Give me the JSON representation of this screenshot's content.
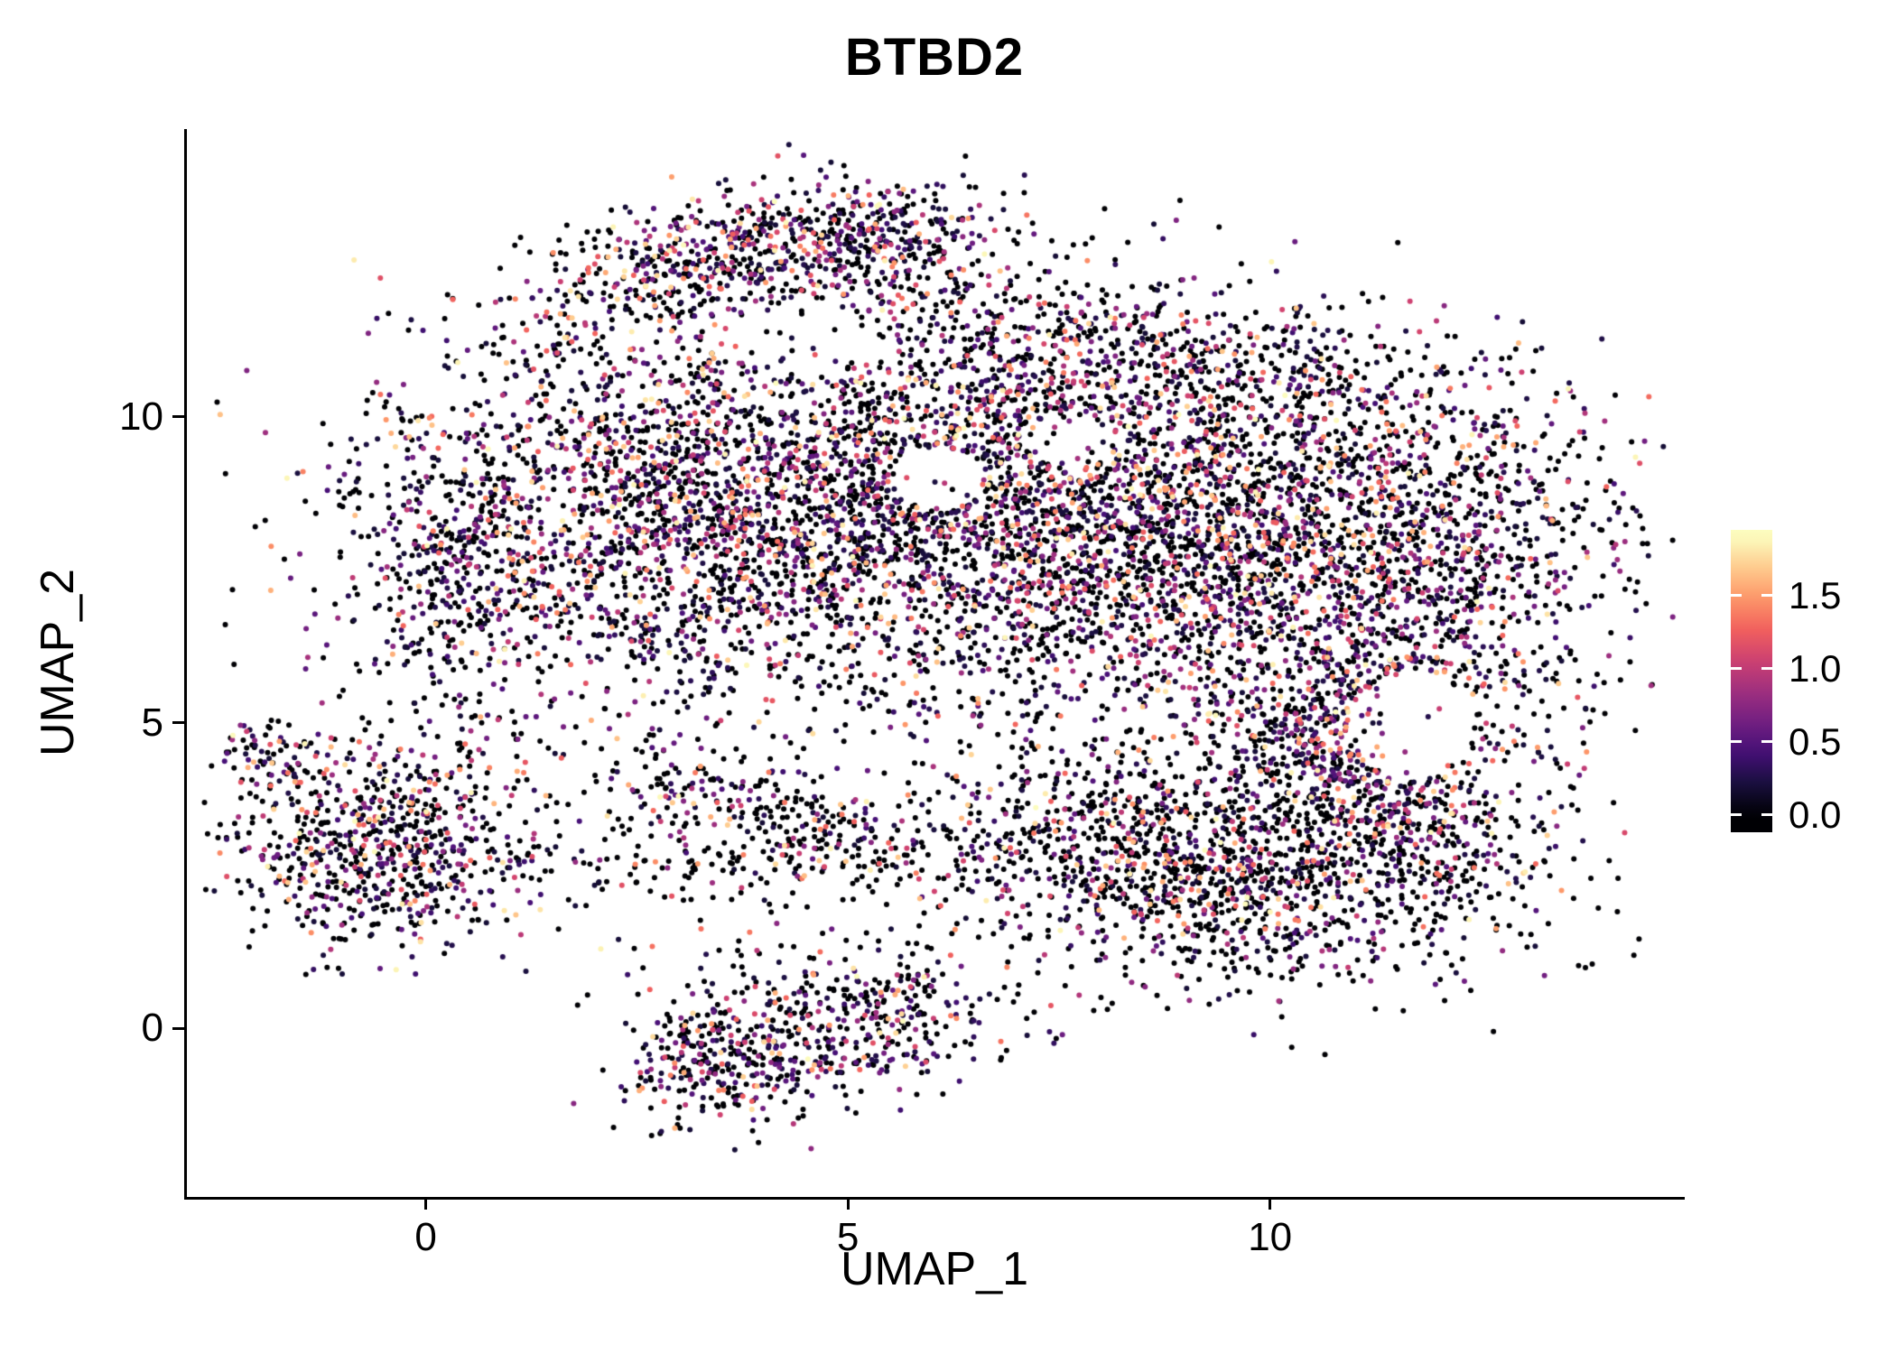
{
  "title": "BTBD2",
  "chart_data": {
    "type": "scatter",
    "title": "BTBD2",
    "xlabel": "UMAP_1",
    "ylabel": "UMAP_2",
    "x_ticks": [
      0,
      5,
      10
    ],
    "y_ticks": [
      0,
      5,
      10
    ],
    "xlim": [
      -2.83,
      14.88
    ],
    "ylim": [
      -2.76,
      14.71
    ],
    "grid": false,
    "point_radius_px": 3,
    "seed": 20240613,
    "value_distribution": {
      "zero_default": 0.5,
      "min_nonzero": 0.18,
      "range": 1.72,
      "exponent": 2.2
    },
    "color_scale": {
      "name": "magma",
      "domain": [
        0,
        1.9
      ],
      "stops": [
        "#000004",
        "#180f3d",
        "#440f76",
        "#721f81",
        "#9e2f7f",
        "#cd4071",
        "#f1605d",
        "#fd9668",
        "#feca8d",
        "#fcfdbf"
      ]
    },
    "legend": {
      "ticks": [
        1.5,
        1.0,
        0.5,
        0.0
      ],
      "tick_labels": [
        "1.5",
        "1.0",
        "0.5",
        "0.0"
      ],
      "vmin": -0.12,
      "vmax": 1.95
    },
    "clusters": [
      {
        "name": "top-arc",
        "n": 520,
        "cx": 3.4,
        "cy": 12.6,
        "sx": 1.25,
        "sy": 0.5,
        "rot": 18,
        "zero": 0.42
      },
      {
        "name": "top-knob",
        "n": 300,
        "cx": 5.4,
        "cy": 12.9,
        "sx": 0.75,
        "sy": 0.45,
        "rot": 0,
        "zero": 0.45
      },
      {
        "name": "upper-mid",
        "n": 380,
        "cx": 6.8,
        "cy": 11.2,
        "sx": 1.5,
        "sy": 0.8,
        "rot": 0,
        "zero": 0.5
      },
      {
        "name": "main-left",
        "n": 2200,
        "cx": 3.0,
        "cy": 8.4,
        "sx": 1.9,
        "sy": 1.7,
        "rot": 0,
        "zero": 0.48
      },
      {
        "name": "left-edge",
        "n": 320,
        "cx": 0.35,
        "cy": 7.4,
        "sx": 0.55,
        "sy": 1.25,
        "rot": 0,
        "zero": 0.45
      },
      {
        "name": "main-center",
        "n": 2200,
        "cx": 6.6,
        "cy": 8.6,
        "sx": 2.0,
        "sy": 1.6,
        "rot": 0,
        "zero": 0.5
      },
      {
        "name": "main-right",
        "n": 2000,
        "cx": 9.6,
        "cy": 8.0,
        "sx": 1.7,
        "sy": 1.5,
        "rot": 0,
        "zero": 0.5
      },
      {
        "name": "top-right-edge",
        "n": 260,
        "cx": 9.9,
        "cy": 10.7,
        "sx": 1.5,
        "sy": 0.55,
        "rot": -8,
        "zero": 0.55
      },
      {
        "name": "far-right",
        "n": 750,
        "cx": 12.3,
        "cy": 7.6,
        "sx": 1.05,
        "sy": 1.7,
        "rot": 0,
        "zero": 0.5
      },
      {
        "name": "right-notch",
        "n": 300,
        "cx": 11.0,
        "cy": 5.3,
        "sx": 0.8,
        "sy": 0.8,
        "rot": 0,
        "zero": 0.45
      },
      {
        "name": "right-band",
        "n": 360,
        "cx": 10.9,
        "cy": 4.4,
        "sx": 0.95,
        "sy": 0.6,
        "rot": -25,
        "zero": 0.38
      },
      {
        "name": "arm",
        "n": 1600,
        "cx": 9.2,
        "cy": 2.7,
        "sx": 1.75,
        "sy": 0.95,
        "rot": -8,
        "zero": 0.62
      },
      {
        "name": "arm-tip",
        "n": 200,
        "cx": 11.9,
        "cy": 3.1,
        "sx": 0.7,
        "sy": 0.6,
        "rot": 0,
        "zero": 0.55
      },
      {
        "name": "left-island",
        "n": 740,
        "cx": -0.5,
        "cy": 3.0,
        "sx": 0.95,
        "sy": 0.85,
        "rot": 8,
        "zero": 0.5
      },
      {
        "name": "left-island-tip",
        "n": 70,
        "cx": -1.8,
        "cy": 4.5,
        "sx": 0.3,
        "sy": 0.3,
        "rot": 0,
        "zero": 0.5
      },
      {
        "name": "bridge",
        "n": 190,
        "cx": 3.9,
        "cy": 2.7,
        "sx": 1.7,
        "sy": 0.35,
        "rot": 0,
        "zero": 0.68
      },
      {
        "name": "strand-a",
        "n": 130,
        "cx": 3.1,
        "cy": 3.9,
        "sx": 0.75,
        "sy": 0.4,
        "rot": -15,
        "zero": 0.55
      },
      {
        "name": "strand-b",
        "n": 110,
        "cx": 4.7,
        "cy": 3.4,
        "sx": 0.65,
        "sy": 0.35,
        "rot": -10,
        "zero": 0.6
      },
      {
        "name": "bottom-island-a",
        "n": 300,
        "cx": 3.5,
        "cy": -0.55,
        "sx": 0.6,
        "sy": 0.55,
        "rot": 0,
        "zero": 0.5
      },
      {
        "name": "bottom-island-b",
        "n": 330,
        "cx": 5.2,
        "cy": 0.0,
        "sx": 0.85,
        "sy": 0.5,
        "rot": 10,
        "zero": 0.52
      },
      {
        "name": "bottom-sparse",
        "n": 80,
        "cx": 4.4,
        "cy": 0.9,
        "sx": 1.2,
        "sy": 0.45,
        "rot": 0,
        "zero": 0.6
      }
    ],
    "holes": [
      {
        "cx": 11.65,
        "cy": 4.95,
        "rx": 0.7,
        "ry": 0.85,
        "keep": 0.06
      },
      {
        "cx": 6.1,
        "cy": 9.0,
        "rx": 0.55,
        "ry": 0.5,
        "keep": 0.1
      },
      {
        "cx": 4.5,
        "cy": 11.3,
        "rx": 0.9,
        "ry": 0.6,
        "keep": 0.25
      },
      {
        "cx": 7.6,
        "cy": 9.6,
        "rx": 0.5,
        "ry": 0.45,
        "keep": 0.2
      }
    ]
  }
}
